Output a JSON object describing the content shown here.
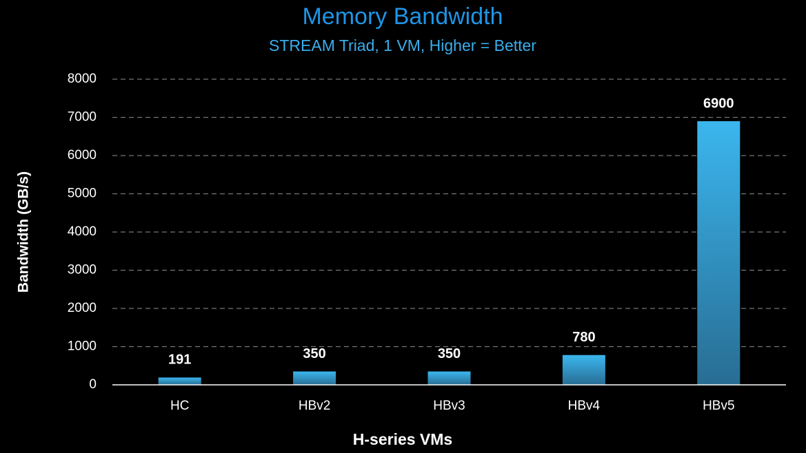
{
  "chart_data": {
    "type": "bar",
    "title": "Memory Bandwidth",
    "subtitle": "STREAM Triad, 1 VM, Higher = Better",
    "x_label": "H-series VMs",
    "y_label": "Bandwidth (GB/s)",
    "categories": [
      "HC",
      "HBv2",
      "HBv3",
      "HBv4",
      "HBv5"
    ],
    "values": [
      191,
      350,
      350,
      780,
      6900
    ],
    "color": "#3bb6ee",
    "ylim": [
      0,
      8000
    ],
    "yticks": [
      0,
      1000,
      2000,
      3000,
      4000,
      5000,
      6000,
      7000,
      8000
    ],
    "grid": true
  }
}
